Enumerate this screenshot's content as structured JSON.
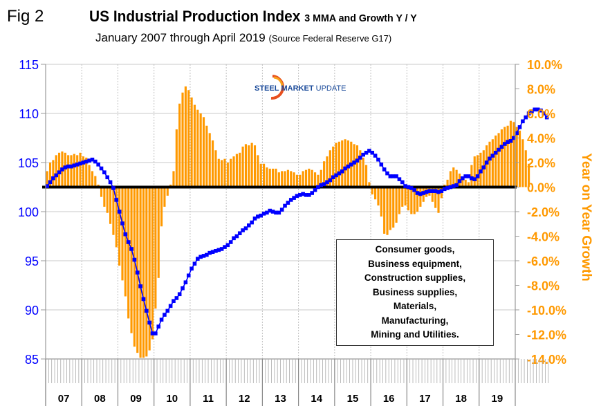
{
  "figure_label": "Fig 2",
  "title_main": "US Industrial Production Index",
  "title_sub": "3 MMA and Growth Y / Y",
  "subtitle_main": "January 2007 through April 2019",
  "subtitle_source": "(Source Federal Reserve G17)",
  "logo": {
    "word1": "STEEL",
    "word2": "MARKET",
    "word3": "UPDATE"
  },
  "legend_lines": [
    "Consumer goods,",
    "Business equipment,",
    "Construction supplies,",
    "Business supplies,",
    "Materials,",
    "Manufacturing,",
    "Mining and Utilities."
  ],
  "colors": {
    "index_line": "#0000ff",
    "growth_bars": "#ff9900",
    "zero_line": "#000000",
    "grid": "#c0c0c0"
  },
  "chart_data": {
    "type": "bar+line",
    "title": "US Industrial Production Index 3 MMA and Growth Y / Y",
    "subtitle": "January 2007 through April 2019 (Source Federal Reserve G17)",
    "xlabel": "",
    "x_tick_labels": [
      "07",
      "08",
      "09",
      "10",
      "11",
      "12",
      "13",
      "14",
      "15",
      "16",
      "17",
      "18",
      "19"
    ],
    "x_start": "2007-01",
    "x_end": "2019-04",
    "frequency": "monthly",
    "left_axis": {
      "label": "",
      "range": [
        85,
        115
      ],
      "ticks": [
        85,
        90,
        95,
        100,
        105,
        110,
        115
      ]
    },
    "right_axis": {
      "label": "Year on Year Growth",
      "range": [
        -14,
        10
      ],
      "ticks": [
        -14,
        -12,
        -10,
        -8,
        -6,
        -4,
        -2,
        0,
        2,
        4,
        6,
        8,
        10
      ],
      "tick_labels": [
        "-14.0%",
        "-12.0%",
        "-10.0%",
        "-8.0%",
        "-6.0%",
        "-4.0%",
        "-2.0%",
        "0.0%",
        "2.0%",
        "4.0%",
        "6.0%",
        "8.0%",
        "10.0%"
      ]
    },
    "grid": true,
    "series": [
      {
        "name": "Index 3 MMA",
        "type": "line",
        "axis": "left",
        "values": [
          102.6,
          103.0,
          103.4,
          103.7,
          104.0,
          104.3,
          104.5,
          104.6,
          104.6,
          104.7,
          104.8,
          104.9,
          105.0,
          105.1,
          105.2,
          105.3,
          105.1,
          104.8,
          104.4,
          104.0,
          103.5,
          103.0,
          102.4,
          101.2,
          100.0,
          98.8,
          97.7,
          96.9,
          96.2,
          95.1,
          93.8,
          92.4,
          91.1,
          89.9,
          88.7,
          87.6,
          87.6,
          88.3,
          89.0,
          89.5,
          89.9,
          90.4,
          90.9,
          91.2,
          91.6,
          92.2,
          92.8,
          93.5,
          94.2,
          94.7,
          95.2,
          95.4,
          95.5,
          95.6,
          95.8,
          95.9,
          96.0,
          96.1,
          96.2,
          96.4,
          96.6,
          96.9,
          97.3,
          97.5,
          97.8,
          98.1,
          98.3,
          98.6,
          98.9,
          99.3,
          99.5,
          99.6,
          99.8,
          99.9,
          100.1,
          100.0,
          99.9,
          99.9,
          100.2,
          100.6,
          100.9,
          101.2,
          101.4,
          101.6,
          101.7,
          101.8,
          101.7,
          101.7,
          101.9,
          102.2,
          102.5,
          102.7,
          102.8,
          103.0,
          103.2,
          103.5,
          103.7,
          103.9,
          104.1,
          104.4,
          104.6,
          104.8,
          105.0,
          105.2,
          105.5,
          105.8,
          106.0,
          106.2,
          106.0,
          105.7,
          105.3,
          104.8,
          104.3,
          103.9,
          103.6,
          103.6,
          103.6,
          103.3,
          103.0,
          102.6,
          102.5,
          102.4,
          102.2,
          101.9,
          101.8,
          101.9,
          102.0,
          102.1,
          102.1,
          102.1,
          102.0,
          102.1,
          102.3,
          102.4,
          102.5,
          102.6,
          102.7,
          103.1,
          103.4,
          103.6,
          103.6,
          103.4,
          103.3,
          103.6,
          104.1,
          104.5,
          105.0,
          105.4,
          105.7,
          106.0,
          106.3,
          106.6,
          106.9,
          107.1,
          107.2,
          107.5,
          108.0,
          108.6,
          109.2,
          109.6,
          110.0,
          110.2,
          110.4,
          110.4,
          110.3,
          110.0,
          109.6
        ]
      },
      {
        "name": "Growth Y / Y",
        "type": "bar",
        "axis": "right",
        "values": [
          1.3,
          2.0,
          2.2,
          2.6,
          2.8,
          2.9,
          2.8,
          2.6,
          2.6,
          2.7,
          2.6,
          2.8,
          2.5,
          2.4,
          1.8,
          1.3,
          0.9,
          0.2,
          -0.8,
          -1.6,
          -2.1,
          -3.0,
          -3.9,
          -4.9,
          -6.4,
          -7.6,
          -8.9,
          -10.7,
          -11.9,
          -13.0,
          -13.5,
          -13.9,
          -13.9,
          -13.8,
          -13.3,
          -12.4,
          -9.9,
          -7.4,
          -3.2,
          -1.6,
          -0.7,
          0.2,
          1.3,
          4.7,
          6.8,
          7.7,
          8.2,
          7.9,
          7.3,
          6.7,
          6.3,
          6.0,
          5.7,
          5.0,
          4.4,
          3.8,
          3.0,
          2.3,
          2.2,
          2.3,
          2.0,
          2.3,
          2.5,
          2.7,
          2.8,
          3.3,
          3.5,
          3.4,
          3.6,
          3.4,
          2.6,
          1.9,
          1.9,
          1.6,
          1.5,
          1.5,
          1.5,
          1.2,
          1.3,
          1.3,
          1.4,
          1.3,
          1.2,
          1.0,
          1.0,
          1.3,
          1.4,
          1.5,
          1.4,
          1.2,
          1.0,
          1.4,
          2.1,
          2.5,
          3.0,
          3.3,
          3.6,
          3.7,
          3.8,
          3.9,
          3.8,
          3.7,
          3.5,
          3.4,
          3.0,
          2.4,
          1.8,
          0.4,
          -0.6,
          -1.0,
          -1.5,
          -2.4,
          -3.8,
          -3.9,
          -3.5,
          -3.3,
          -2.9,
          -2.2,
          -1.6,
          -1.5,
          -1.9,
          -2.2,
          -2.2,
          -2.0,
          -1.6,
          -1.2,
          -0.8,
          -0.7,
          -1.2,
          -1.7,
          -2.1,
          -0.9,
          0.2,
          0.6,
          1.3,
          1.6,
          1.4,
          1.1,
          0.8,
          0.6,
          0.4,
          1.8,
          2.5,
          2.6,
          2.8,
          3.0,
          3.4,
          3.7,
          3.9,
          4.2,
          4.4,
          4.7,
          4.9,
          5.0,
          5.4,
          5.3,
          4.9,
          4.6,
          3.9,
          3.0,
          1.9
        ]
      }
    ],
    "annotation": "Consumer goods, Business equipment, Construction supplies, Business supplies, Materials, Manufacturing, Mining and Utilities."
  }
}
